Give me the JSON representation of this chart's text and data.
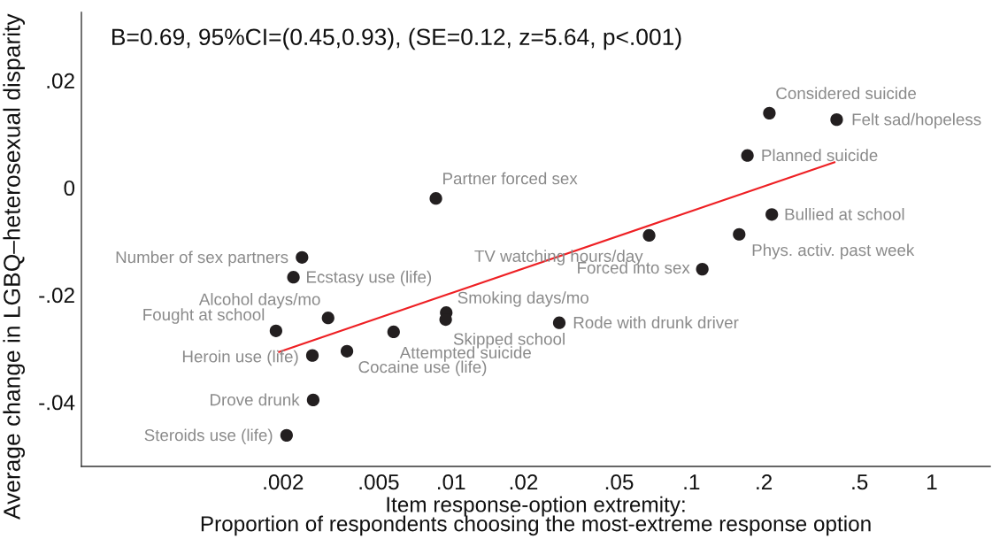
{
  "chart_data": {
    "type": "scatter",
    "xlabel": "Item response-option extremity:\nProportion of respondents choosing the most-extreme response option",
    "ylabel": "Average change in LGBQ–heterosexual disparity",
    "log": "x",
    "xlim": [
      0.00029,
      1.75
    ],
    "ylim": [
      -0.052,
      0.0327
    ],
    "xticks": [
      {
        "value": 0.002,
        "label": ".002"
      },
      {
        "value": 0.005,
        "label": ".005"
      },
      {
        "value": 0.01,
        "label": ".01"
      },
      {
        "value": 0.02,
        "label": ".02"
      },
      {
        "value": 0.05,
        "label": ".05"
      },
      {
        "value": 0.1,
        "label": ".1"
      },
      {
        "value": 0.2,
        "label": ".2"
      },
      {
        "value": 0.5,
        "label": ".5"
      },
      1
    ],
    "yticks": [
      {
        "value": -0.04,
        "label": "-.04"
      },
      {
        "value": -0.02,
        "label": "-.02"
      },
      0,
      {
        "value": 0.02,
        "label": ".02"
      }
    ],
    "grid": false,
    "marker": "circle",
    "series": [
      {
        "color": "#231f20",
        "x": [
          0.211,
          0.402,
          0.171,
          0.216,
          0.158,
          0.0667,
          0.111,
          0.0282,
          0.00865,
          0.0024,
          0.00221,
          0.00308,
          0.00187,
          0.00265,
          0.00369,
          0.00577,
          0.00955,
          0.0095,
          0.00267,
          0.00207
        ],
        "values": [
          0.0139,
          0.0127,
          0.006,
          -0.005,
          -0.0087,
          -0.0089,
          -0.0152,
          -0.0252,
          -0.002,
          -0.013,
          -0.0167,
          -0.0243,
          -0.0267,
          -0.0313,
          -0.0305,
          -0.0269,
          -0.0233,
          -0.0246,
          -0.0396,
          -0.0462
        ]
      },
      {
        "type": "line",
        "color": "#ee2024",
        "line_style": "solid",
        "marker": "none",
        "x": [
          0.00191,
          0.397
        ],
        "values": [
          -0.0307,
          0.0048
        ]
      }
    ],
    "annotations": [
      "B=0.69, 95%CI=(0.45,0.93), (SE=0.12, z=5.64, p<.001)",
      {
        "text": "Considered suicide",
        "x": 0.211,
        "y": 0.0139
      },
      {
        "text": "Felt sad/hopeless",
        "x": 0.402,
        "y": 0.0127
      },
      {
        "text": "Planned suicide",
        "x": 0.171,
        "y": 0.006
      },
      {
        "text": "Bullied at school",
        "x": 0.216,
        "y": -0.005
      },
      {
        "text": "Phys. activ. past week",
        "x": 0.158,
        "y": -0.0087
      },
      {
        "text": "TV watching hours/day",
        "x": 0.0667,
        "y": -0.0089
      },
      {
        "text": "Forced into sex",
        "x": 0.111,
        "y": -0.0152
      },
      {
        "text": "Rode with drunk driver",
        "x": 0.0282,
        "y": -0.0252
      },
      {
        "text": "Partner forced sex",
        "x": 0.00865,
        "y": -0.002
      },
      {
        "text": "Number of sex partners",
        "x": 0.0024,
        "y": -0.013
      },
      {
        "text": "Ecstasy use (life)",
        "x": 0.00221,
        "y": -0.0167
      },
      {
        "text": "Alcohol days/mo",
        "x": 0.00308,
        "y": -0.0243
      },
      {
        "text": "Fought at school",
        "x": 0.00187,
        "y": -0.0267
      },
      {
        "text": "Heroin use (life)",
        "x": 0.00265,
        "y": -0.0313
      },
      {
        "text": "Cocaine use (life)",
        "x": 0.00369,
        "y": -0.0305
      },
      {
        "text": "Attempted suicide",
        "x": 0.00577,
        "y": -0.0269
      },
      {
        "text": "Smoking days/mo",
        "x": 0.00955,
        "y": -0.0233
      },
      {
        "text": "Skipped school",
        "x": 0.0095,
        "y": -0.0246
      },
      {
        "text": "Drove drunk",
        "x": 0.00267,
        "y": -0.0396
      },
      {
        "text": "Steroids use (life)",
        "x": 0.00207,
        "y": -0.0462
      }
    ]
  }
}
